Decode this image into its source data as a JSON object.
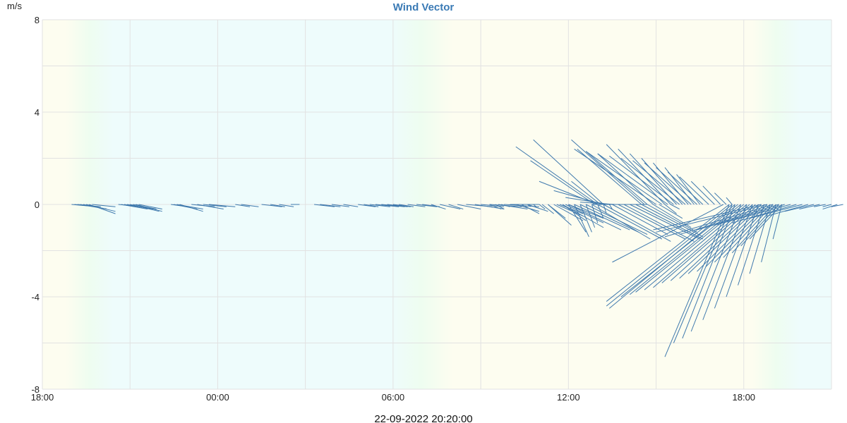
{
  "chart_data": {
    "type": "line",
    "title": "Wind Vector",
    "ylabel": "m/s",
    "ylim": [
      -8,
      8
    ],
    "y_ticks": [
      "8",
      "4",
      "0",
      "-4",
      "-8"
    ],
    "x_ticks": [
      "18:00",
      "00:00",
      "06:00",
      "12:00",
      "18:00"
    ],
    "x_range_hours": [
      0,
      27
    ],
    "timestamp": "22-09-2022 20:20:00",
    "grid": true,
    "colors": {
      "series": "#3f79ad",
      "title": "#3a7ab5",
      "night": "#eefcfc",
      "day": "#fdfdf0",
      "twilight": "#eefdf0"
    },
    "series": [
      {
        "values": [
          [
            1.0,
            0.0,
            0.9,
            -0.1
          ],
          [
            1.1,
            0.0,
            0.8,
            -0.1
          ],
          [
            1.2,
            0.0,
            0.8,
            -0.1
          ],
          [
            1.3,
            0.0,
            0.9,
            -0.2
          ],
          [
            1.4,
            0.0,
            0.8,
            -0.2
          ],
          [
            1.5,
            0.0,
            1.0,
            -0.3
          ],
          [
            1.6,
            0.0,
            0.9,
            -0.4
          ],
          [
            1.7,
            0.0,
            0.8,
            -0.1
          ],
          [
            2.6,
            0.0,
            0.8,
            -0.1
          ],
          [
            2.7,
            0.0,
            0.9,
            -0.2
          ],
          [
            2.8,
            0.0,
            1.0,
            -0.2
          ],
          [
            2.9,
            0.0,
            0.9,
            -0.2
          ],
          [
            3.0,
            0.0,
            1.0,
            -0.3
          ],
          [
            3.1,
            0.0,
            0.8,
            -0.2
          ],
          [
            3.2,
            0.0,
            0.9,
            -0.3
          ],
          [
            3.3,
            0.0,
            0.8,
            -0.2
          ],
          [
            4.4,
            0.0,
            0.6,
            -0.1
          ],
          [
            4.5,
            0.0,
            0.8,
            -0.2
          ],
          [
            4.6,
            0.0,
            0.9,
            -0.2
          ],
          [
            4.7,
            0.0,
            0.8,
            -0.3
          ],
          [
            5.1,
            0.0,
            0.8,
            -0.1
          ],
          [
            5.3,
            0.0,
            0.9,
            -0.2
          ],
          [
            5.5,
            0.0,
            0.8,
            -0.1
          ],
          [
            5.7,
            0.0,
            0.9,
            -0.1
          ],
          [
            6.6,
            0.0,
            0.5,
            -0.1
          ],
          [
            6.8,
            0.0,
            0.6,
            -0.1
          ],
          [
            7.5,
            0.0,
            0.7,
            -0.1
          ],
          [
            7.8,
            0.0,
            0.5,
            -0.1
          ],
          [
            8.1,
            0.0,
            0.5,
            -0.1
          ],
          [
            8.5,
            0.0,
            0.3,
            0.0
          ],
          [
            9.3,
            0.0,
            0.7,
            -0.1
          ],
          [
            9.5,
            0.0,
            0.7,
            -0.1
          ],
          [
            9.9,
            0.0,
            0.6,
            -0.1
          ],
          [
            10.3,
            0.0,
            0.5,
            -0.1
          ],
          [
            10.8,
            0.0,
            0.6,
            -0.1
          ],
          [
            11.0,
            0.0,
            0.5,
            -0.1
          ],
          [
            11.2,
            0.0,
            0.7,
            -0.1
          ],
          [
            11.4,
            0.0,
            0.8,
            -0.1
          ],
          [
            11.6,
            0.0,
            0.8,
            -0.1
          ],
          [
            11.8,
            0.0,
            0.7,
            -0.1
          ],
          [
            12.0,
            0.0,
            0.6,
            -0.1
          ],
          [
            12.2,
            0.0,
            0.5,
            -0.1
          ],
          [
            12.5,
            0.0,
            0.6,
            -0.1
          ],
          [
            12.8,
            0.0,
            0.7,
            -0.1
          ],
          [
            13.0,
            0.0,
            0.6,
            -0.1
          ],
          [
            13.3,
            0.0,
            0.5,
            -0.2
          ],
          [
            13.6,
            0.0,
            0.7,
            -0.2
          ],
          [
            13.9,
            0.0,
            0.5,
            -0.2
          ],
          [
            14.2,
            0.0,
            0.8,
            -0.2
          ],
          [
            14.5,
            0.0,
            0.9,
            -0.1
          ],
          [
            14.8,
            0.0,
            1.0,
            -0.2
          ],
          [
            15.0,
            0.0,
            0.8,
            -0.1
          ],
          [
            15.3,
            0.0,
            1.1,
            -0.1
          ],
          [
            15.6,
            0.0,
            1.0,
            -0.2
          ],
          [
            15.8,
            0.0,
            1.2,
            -0.1
          ],
          [
            16.0,
            0.0,
            1.0,
            0.0
          ],
          [
            16.2,
            0.0,
            0.8,
            -0.3
          ],
          [
            16.4,
            0.0,
            0.6,
            -0.4
          ],
          [
            16.6,
            0.0,
            0.7,
            -0.3
          ],
          [
            19.0,
            0.0,
            -2.8,
            2.5
          ],
          [
            19.2,
            0.0,
            -2.4,
            2.8
          ],
          [
            18.9,
            0.0,
            -2.2,
            1.9
          ],
          [
            19.0,
            0.0,
            -2.0,
            1.0
          ],
          [
            19.2,
            0.0,
            -1.7,
            0.6
          ],
          [
            19.4,
            0.0,
            -1.5,
            0.3
          ],
          [
            19.6,
            0.0,
            -1.2,
            0.1
          ],
          [
            19.8,
            0.0,
            -1.0,
            0.0
          ],
          [
            20.1,
            0.0,
            -1.0,
            0.0
          ],
          [
            20.3,
            0.0,
            -0.9,
            0.0
          ],
          [
            20.5,
            0.0,
            -0.8,
            0.0
          ],
          [
            20.7,
            0.0,
            -0.8,
            0.0
          ],
          [
            19.1,
            0.0,
            -1.0,
            1.0
          ],
          [
            17.5,
            0.0,
            1.0,
            -0.7
          ],
          [
            17.6,
            0.0,
            0.9,
            -0.5
          ],
          [
            17.7,
            0.0,
            0.8,
            -0.4
          ],
          [
            16.6,
            0.0,
            0.1,
            -0.1
          ],
          [
            16.8,
            0.0,
            0.1,
            -0.1
          ],
          [
            17.0,
            0.0,
            0.2,
            -0.2
          ],
          [
            15.3,
            0.0,
            0.4,
            -0.2
          ],
          [
            15.5,
            0.0,
            0.3,
            -0.2
          ],
          [
            15.7,
            0.0,
            0.3,
            -0.1
          ],
          [
            18.0,
            0.0,
            1.8,
            -1.1
          ],
          [
            18.2,
            0.0,
            1.9,
            -1.1
          ],
          [
            18.4,
            0.0,
            2.0,
            -1.2
          ],
          [
            18.6,
            0.0,
            2.1,
            -1.3
          ],
          [
            18.8,
            0.0,
            2.0,
            -1.5
          ],
          [
            19.0,
            0.0,
            2.2,
            -1.5
          ],
          [
            19.2,
            0.0,
            2.3,
            -1.6
          ],
          [
            19.5,
            0.0,
            1.9,
            -1.3
          ],
          [
            19.7,
            0.0,
            2.3,
            -1.5
          ],
          [
            19.9,
            0.0,
            2.4,
            -1.6
          ],
          [
            20.1,
            0.0,
            2.4,
            -1.5
          ],
          [
            20.3,
            0.0,
            2.3,
            -1.5
          ],
          [
            20.5,
            0.0,
            2.1,
            -1.4
          ],
          [
            20.7,
            0.0,
            1.7,
            -1.2
          ],
          [
            20.9,
            0.0,
            1.3,
            -1.0
          ],
          [
            21.1,
            0.0,
            0.8,
            -0.6
          ],
          [
            21.3,
            0.0,
            0.4,
            -0.4
          ],
          [
            21.5,
            0.0,
            0.3,
            -0.2
          ],
          [
            17.8,
            0.0,
            1.4,
            -1.0
          ],
          [
            17.9,
            0.0,
            1.3,
            -0.8
          ],
          [
            18.0,
            0.0,
            1.2,
            -0.6
          ],
          [
            17.3,
            0.0,
            0.6,
            -0.6
          ],
          [
            17.1,
            0.0,
            0.4,
            -0.4
          ],
          [
            17.3,
            0.0,
            0.8,
            -0.9
          ],
          [
            17.8,
            0.0,
            0.8,
            -0.7
          ],
          [
            18.0,
            0.0,
            0.6,
            -1.2
          ],
          [
            18.2,
            0.0,
            0.5,
            -1.4
          ],
          [
            18.4,
            0.0,
            0.4,
            -1.2
          ],
          [
            18.6,
            0.0,
            0.3,
            -1.0
          ],
          [
            18.8,
            0.0,
            0.2,
            -0.8
          ],
          [
            19.0,
            0.0,
            0.2,
            -0.6
          ],
          [
            19.2,
            0.0,
            0.1,
            -0.4
          ],
          [
            19.4,
            0.0,
            0.1,
            -0.2
          ],
          [
            21.0,
            0.0,
            -2.8,
            2.4
          ],
          [
            21.2,
            0.0,
            -2.6,
            2.3
          ],
          [
            21.4,
            0.0,
            -2.4,
            2.2
          ],
          [
            21.6,
            0.0,
            -2.2,
            2.1
          ],
          [
            21.8,
            0.0,
            -2.0,
            2.0
          ],
          [
            22.0,
            0.0,
            -1.8,
            1.9
          ],
          [
            22.2,
            0.0,
            -1.6,
            1.8
          ],
          [
            22.4,
            0.0,
            -1.4,
            1.6
          ],
          [
            22.6,
            0.0,
            -1.2,
            1.4
          ],
          [
            22.8,
            0.0,
            -1.0,
            1.2
          ],
          [
            23.0,
            0.0,
            -0.8,
            1.0
          ],
          [
            23.2,
            0.0,
            -0.6,
            0.8
          ],
          [
            23.4,
            0.0,
            -0.4,
            0.5
          ],
          [
            23.6,
            0.0,
            -0.2,
            0.3
          ],
          [
            20.5,
            0.0,
            -2.2,
            2.4
          ],
          [
            20.7,
            0.0,
            -2.1,
            2.3
          ],
          [
            20.9,
            0.0,
            -1.9,
            2.2
          ],
          [
            20.6,
            0.0,
            -2.5,
            2.8
          ],
          [
            21.3,
            0.0,
            -2.0,
            2.6
          ],
          [
            21.5,
            0.0,
            -1.8,
            2.4
          ],
          [
            21.7,
            0.0,
            -1.6,
            2.2
          ],
          [
            21.9,
            0.0,
            -1.4,
            2.0
          ],
          [
            22.1,
            0.0,
            -1.2,
            1.8
          ],
          [
            22.3,
            0.0,
            -1.0,
            1.6
          ],
          [
            22.5,
            0.0,
            -0.8,
            1.3
          ],
          [
            23.3,
            0.0,
            -3.8,
            -2.5
          ],
          [
            23.5,
            0.0,
            -4.2,
            -4.2
          ],
          [
            23.6,
            0.0,
            -4.3,
            -4.4
          ],
          [
            23.7,
            0.0,
            -4.3,
            -4.5
          ],
          [
            23.8,
            0.0,
            -4.0,
            -4.0
          ],
          [
            23.9,
            0.0,
            -3.8,
            -3.9
          ],
          [
            24.0,
            0.0,
            -3.7,
            -3.8
          ],
          [
            24.1,
            0.0,
            -3.5,
            -3.7
          ],
          [
            24.2,
            0.0,
            -3.3,
            -3.6
          ],
          [
            24.3,
            0.0,
            -3.1,
            -3.4
          ],
          [
            24.4,
            0.0,
            -2.9,
            -3.3
          ],
          [
            24.5,
            0.0,
            -2.7,
            -3.2
          ],
          [
            24.6,
            0.0,
            -2.5,
            -3.0
          ],
          [
            24.7,
            0.0,
            -2.3,
            -2.9
          ],
          [
            24.8,
            0.0,
            -2.1,
            -2.7
          ],
          [
            24.9,
            0.0,
            -1.9,
            -2.5
          ],
          [
            25.0,
            0.0,
            -1.7,
            -2.3
          ],
          [
            25.1,
            0.0,
            -1.5,
            -2.1
          ],
          [
            25.2,
            0.0,
            -1.3,
            -1.8
          ],
          [
            25.3,
            0.0,
            -1.1,
            -1.5
          ],
          [
            23.5,
            0.0,
            -2.2,
            -6.6
          ],
          [
            23.6,
            0.0,
            -2.0,
            -6.0
          ],
          [
            23.7,
            0.0,
            -1.8,
            -5.8
          ],
          [
            23.9,
            0.0,
            -1.7,
            -5.5
          ],
          [
            24.1,
            0.0,
            -1.5,
            -5.0
          ],
          [
            24.3,
            0.0,
            -1.3,
            -4.5
          ],
          [
            24.5,
            0.0,
            -1.1,
            -4.0
          ],
          [
            24.7,
            0.0,
            -0.9,
            -3.5
          ],
          [
            24.9,
            0.0,
            -0.7,
            -3.0
          ],
          [
            25.1,
            0.0,
            -0.5,
            -2.5
          ],
          [
            25.3,
            0.0,
            -0.3,
            -1.5
          ],
          [
            24.6,
            0.0,
            -3.7,
            -1.1
          ],
          [
            24.8,
            0.0,
            -3.8,
            -1.2
          ],
          [
            25.0,
            0.0,
            -3.7,
            -1.4
          ],
          [
            25.2,
            0.0,
            -3.4,
            -1.3
          ],
          [
            25.4,
            0.0,
            -3.0,
            -1.1
          ],
          [
            25.6,
            0.0,
            -2.6,
            -0.9
          ],
          [
            25.8,
            0.0,
            -2.2,
            -0.8
          ],
          [
            26.0,
            0.0,
            -1.8,
            -0.6
          ],
          [
            26.2,
            0.0,
            -1.4,
            -0.5
          ],
          [
            26.4,
            0.0,
            -1.0,
            -0.3
          ],
          [
            26.6,
            0.0,
            -0.7,
            -0.2
          ],
          [
            26.8,
            0.0,
            -0.4,
            -0.1
          ],
          [
            27.0,
            0.0,
            -0.3,
            -0.1
          ],
          [
            27.2,
            0.0,
            -0.5,
            -0.2
          ],
          [
            27.4,
            0.0,
            -0.4,
            -0.1
          ]
        ]
      }
    ]
  }
}
